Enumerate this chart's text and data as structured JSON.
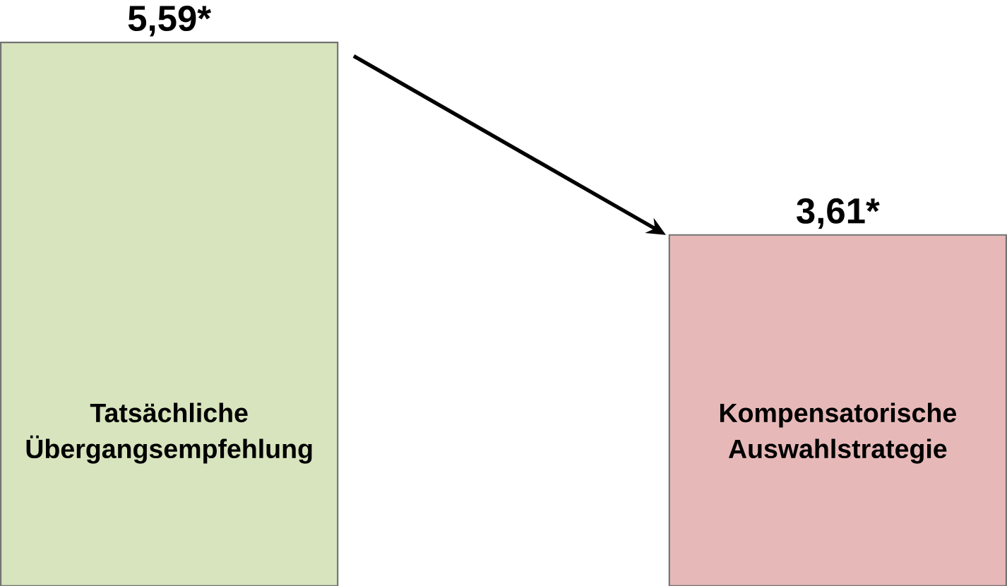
{
  "chart_data": {
    "type": "bar",
    "categories": [
      "Tatsächliche Übergangsempfehlung",
      "Kompensatorische Auswahlstrategie"
    ],
    "values": [
      5.59,
      3.61
    ],
    "colors": [
      "#d7e4bd",
      "#e6b9b8"
    ],
    "value_labels": [
      "5,59*",
      "3,61*"
    ]
  }
}
